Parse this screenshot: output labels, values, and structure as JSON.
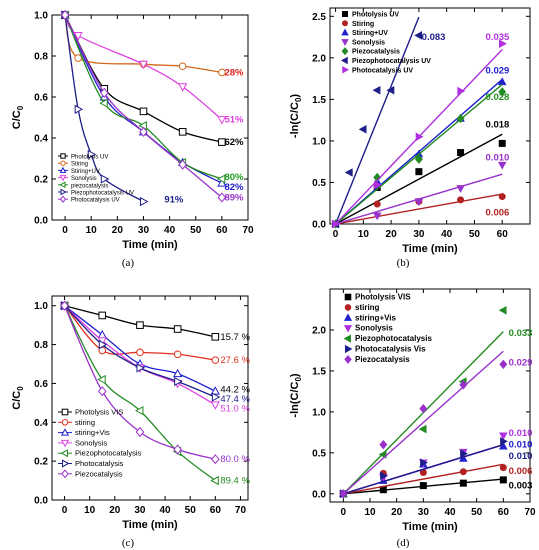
{
  "chart_data": [
    {
      "panel": "(a)",
      "type": "line",
      "xlabel": "Time (min)",
      "ylabel": "C/C",
      "ylabel_sub": "0",
      "xlim": [
        -5,
        70
      ],
      "ylim": [
        0.0,
        1.0
      ],
      "xticks": [
        0,
        10,
        20,
        30,
        40,
        50,
        60,
        70
      ],
      "yticks": [
        0.0,
        0.2,
        0.4,
        0.6,
        0.8,
        1.0
      ],
      "series": [
        {
          "name": "Photolysis UV",
          "color": "#000000",
          "marker": "square",
          "x": [
            0,
            15,
            30,
            45,
            60
          ],
          "y": [
            1.0,
            0.64,
            0.53,
            0.43,
            0.38
          ]
        },
        {
          "name": "Stiring",
          "color": "#d2691e",
          "marker": "circle",
          "x": [
            0,
            5,
            30,
            45,
            60
          ],
          "y": [
            1.0,
            0.79,
            0.76,
            0.75,
            0.72
          ]
        },
        {
          "name": "Stiring+UV",
          "color": "#2020d0",
          "marker": "triangle-up",
          "x": [
            0,
            15,
            30,
            45,
            60
          ],
          "y": [
            1.0,
            0.6,
            0.43,
            0.28,
            0.18
          ]
        },
        {
          "name": "Sonolysis",
          "color": "#e040e0",
          "marker": "triangle-down",
          "x": [
            0,
            5,
            30,
            45,
            60
          ],
          "y": [
            1.0,
            0.9,
            0.76,
            0.65,
            0.49
          ]
        },
        {
          "name": "piezocatalysis",
          "color": "#228b22",
          "marker": "triangle-left",
          "x": [
            0,
            15,
            30,
            45,
            60
          ],
          "y": [
            1.0,
            0.57,
            0.46,
            0.28,
            0.2
          ]
        },
        {
          "name": "Piezophotocatalysis UV",
          "color": "#1e1e8a",
          "marker": "triangle-right",
          "x": [
            0,
            5,
            10,
            15,
            30
          ],
          "y": [
            1.0,
            0.54,
            0.32,
            0.2,
            0.09
          ]
        },
        {
          "name": "Photocatalysis UV",
          "color": "#9932cc",
          "marker": "diamond",
          "x": [
            0,
            15,
            30,
            45,
            60
          ],
          "y": [
            1.0,
            0.62,
            0.43,
            0.27,
            0.11
          ]
        }
      ],
      "annotations": [
        {
          "text": "28%",
          "color": "#e02020",
          "x": 61,
          "y": 0.72
        },
        {
          "text": "51%",
          "color": "#e040e0",
          "x": 61,
          "y": 0.49
        },
        {
          "text": "62%",
          "color": "#000000",
          "x": 61,
          "y": 0.38
        },
        {
          "text": "80%",
          "color": "#20a020",
          "x": 61,
          "y": 0.21
        },
        {
          "text": "82%",
          "color": "#2020d0",
          "x": 61,
          "y": 0.16
        },
        {
          "text": "89%",
          "color": "#9932cc",
          "x": 61,
          "y": 0.11
        },
        {
          "text": "91%",
          "color": "#1e1e8a",
          "x": 38,
          "y": 0.1
        }
      ]
    },
    {
      "panel": "(b)",
      "type": "scatter",
      "xlabel": "Time (min)",
      "ylabel": "-ln(C/C",
      "ylabel_sub": "0",
      "ylabel_tail": ")",
      "xlim": [
        -2,
        70
      ],
      "ylim": [
        0.0,
        2.6
      ],
      "xticks": [
        0,
        10,
        20,
        30,
        40,
        50,
        60
      ],
      "yticks": [
        0.0,
        0.5,
        1.0,
        1.5,
        2.0,
        2.5
      ],
      "series": [
        {
          "name": "Photolysis UV",
          "color": "#000000",
          "marker": "square",
          "slope": 0.018,
          "x": [
            0,
            15,
            30,
            45,
            60
          ],
          "y": [
            0.0,
            0.44,
            0.63,
            0.86,
            0.97
          ]
        },
        {
          "name": "Stiring",
          "color": "#b22222",
          "marker": "circle",
          "slope": 0.006,
          "x": [
            0,
            15,
            30,
            45,
            60
          ],
          "y": [
            0.0,
            0.24,
            0.27,
            0.29,
            0.33
          ]
        },
        {
          "name": "Stiring+UV",
          "color": "#2020d0",
          "marker": "triangle-up",
          "slope": 0.029,
          "x": [
            0,
            15,
            30,
            45,
            60
          ],
          "y": [
            0.0,
            0.51,
            0.84,
            1.27,
            1.71
          ]
        },
        {
          "name": "Sonolysis",
          "color": "#9932cc",
          "marker": "triangle-down",
          "slope": 0.01,
          "x": [
            0,
            15,
            30,
            45,
            60
          ],
          "y": [
            0.0,
            0.1,
            0.27,
            0.43,
            0.71
          ]
        },
        {
          "name": "Piezocatalysis",
          "color": "#228b22",
          "marker": "diamond",
          "slope": 0.028,
          "x": [
            0,
            15,
            30,
            45,
            60
          ],
          "y": [
            0.0,
            0.56,
            0.78,
            1.27,
            1.59
          ]
        },
        {
          "name": "Piezophotocatalysis UV",
          "color": "#1e1e8a",
          "marker": "triangle-left",
          "slope": 0.083,
          "x": [
            0,
            5,
            10,
            15,
            20,
            30
          ],
          "y": [
            0.0,
            0.62,
            1.14,
            1.61,
            1.61,
            2.27
          ]
        },
        {
          "name": "Photocatalysis UV",
          "color": "#b030e0",
          "marker": "triangle-right",
          "slope": 0.035,
          "x": [
            0,
            15,
            30,
            45,
            60
          ],
          "y": [
            0.0,
            0.47,
            1.05,
            1.6,
            2.17
          ]
        }
      ],
      "annotations": [
        {
          "text": "0.083",
          "color": "#1e1e8a",
          "x": 31,
          "y": 2.25
        },
        {
          "text": "0.035",
          "color": "#b030e0",
          "x": 54,
          "y": 2.25
        },
        {
          "text": "0.029",
          "color": "#2020d0",
          "x": 54,
          "y": 1.85
        },
        {
          "text": "0.028",
          "color": "#228b22",
          "x": 54,
          "y": 1.53
        },
        {
          "text": "0.018",
          "color": "#000000",
          "x": 54,
          "y": 1.2
        },
        {
          "text": "0.010",
          "color": "#9932cc",
          "x": 54,
          "y": 0.8
        },
        {
          "text": "0.006",
          "color": "#b22222",
          "x": 54,
          "y": 0.14
        }
      ]
    },
    {
      "panel": "(c)",
      "type": "line",
      "xlabel": "Time (min)",
      "ylabel": "C/C",
      "ylabel_sub": "0",
      "xlim": [
        -5,
        73
      ],
      "ylim": [
        0.0,
        1.05
      ],
      "xticks": [
        0,
        10,
        20,
        30,
        40,
        50,
        60,
        70
      ],
      "yticks": [
        0.0,
        0.2,
        0.4,
        0.6,
        0.8,
        1.0
      ],
      "series": [
        {
          "name": "Photolysis VIS",
          "color": "#000000",
          "marker": "square",
          "x": [
            0,
            15,
            30,
            45,
            60
          ],
          "y": [
            1.0,
            0.95,
            0.9,
            0.88,
            0.84
          ]
        },
        {
          "name": "stiring",
          "color": "#e03020",
          "marker": "circle",
          "x": [
            0,
            15,
            30,
            45,
            60
          ],
          "y": [
            1.0,
            0.77,
            0.76,
            0.75,
            0.72
          ]
        },
        {
          "name": "stiring+Vis",
          "color": "#2020d0",
          "marker": "triangle-up",
          "x": [
            0,
            15,
            30,
            45,
            60
          ],
          "y": [
            1.0,
            0.85,
            0.7,
            0.65,
            0.56
          ]
        },
        {
          "name": "Sonolysis",
          "color": "#e040e0",
          "marker": "triangle-down",
          "x": [
            0,
            15,
            30,
            45,
            60
          ],
          "y": [
            1.0,
            0.82,
            0.68,
            0.6,
            0.49
          ]
        },
        {
          "name": "Piezophotocatalysis",
          "color": "#228b22",
          "marker": "triangle-left",
          "x": [
            0,
            15,
            30,
            45,
            60
          ],
          "y": [
            1.0,
            0.62,
            0.46,
            0.25,
            0.1
          ]
        },
        {
          "name": "Photocatalysis",
          "color": "#1e1e8a",
          "marker": "triangle-right",
          "x": [
            0,
            15,
            30,
            45,
            60
          ],
          "y": [
            1.0,
            0.8,
            0.68,
            0.61,
            0.53
          ]
        },
        {
          "name": "Piezocatalysis",
          "color": "#9932cc",
          "marker": "diamond",
          "x": [
            0,
            15,
            30,
            45,
            60
          ],
          "y": [
            1.0,
            0.56,
            0.35,
            0.26,
            0.21
          ]
        }
      ],
      "annotations": [
        {
          "text": "15.7 %",
          "color": "#000000",
          "x": 62,
          "y": 0.84
        },
        {
          "text": "27.6 %",
          "color": "#e03020",
          "x": 62,
          "y": 0.72
        },
        {
          "text": "44.2 %",
          "color": "#000000",
          "x": 62,
          "y": 0.57
        },
        {
          "text": "47.4 %",
          "color": "#1e1e8a",
          "x": 62,
          "y": 0.52
        },
        {
          "text": "51.0 %",
          "color": "#e040e0",
          "x": 62,
          "y": 0.47
        },
        {
          "text": "80.0 %",
          "color": "#9932cc",
          "x": 62,
          "y": 0.21
        },
        {
          "text": "89.4 %",
          "color": "#228b22",
          "x": 62,
          "y": 0.1
        }
      ]
    },
    {
      "panel": "(d)",
      "type": "scatter",
      "xlabel": "Time (min)",
      "ylabel": "-ln(C/C",
      "ylabel_sub": "0",
      "ylabel_tail": ")",
      "xlim": [
        -5,
        70
      ],
      "ylim": [
        -0.1,
        2.5
      ],
      "xticks": [
        0,
        10,
        20,
        30,
        40,
        50,
        60,
        70
      ],
      "yticks": [
        0.0,
        0.5,
        1.0,
        1.5,
        2.0
      ],
      "series": [
        {
          "name": "Photolysis VIS",
          "color": "#000000",
          "marker": "square",
          "slope": 0.003,
          "x": [
            0,
            15,
            30,
            45,
            60
          ],
          "y": [
            0.0,
            0.05,
            0.1,
            0.13,
            0.17
          ]
        },
        {
          "name": "stiring",
          "color": "#b22222",
          "marker": "circle",
          "slope": 0.006,
          "x": [
            0,
            15,
            30,
            45,
            60
          ],
          "y": [
            0.0,
            0.25,
            0.26,
            0.27,
            0.32
          ]
        },
        {
          "name": "stiring+Vis",
          "color": "#2020d0",
          "marker": "triangle-up",
          "slope": 0.01,
          "x": [
            0,
            15,
            30,
            45,
            60
          ],
          "y": [
            0.0,
            0.16,
            0.36,
            0.43,
            0.58
          ]
        },
        {
          "name": "Sonolysis",
          "color": "#b030e0",
          "marker": "triangle-down",
          "slope": 0.01,
          "x": [
            0,
            15,
            30,
            45,
            60
          ],
          "y": [
            0.0,
            0.2,
            0.38,
            0.51,
            0.71
          ]
        },
        {
          "name": "Piezophotocatalysis",
          "color": "#228b22",
          "marker": "triangle-left",
          "slope": 0.033,
          "x": [
            0,
            15,
            30,
            45,
            60
          ],
          "y": [
            0.0,
            0.48,
            0.79,
            1.37,
            2.24
          ]
        },
        {
          "name": "Photocatalysis Vis",
          "color": "#1e1e8a",
          "marker": "triangle-right",
          "slope": 0.01,
          "x": [
            0,
            15,
            30,
            45,
            60
          ],
          "y": [
            0.0,
            0.22,
            0.38,
            0.49,
            0.64
          ]
        },
        {
          "name": "Piezocatalysis",
          "color": "#9932cc",
          "marker": "diamond",
          "slope": 0.029,
          "x": [
            0,
            15,
            30,
            45,
            60
          ],
          "y": [
            0.0,
            0.6,
            1.04,
            1.33,
            1.58
          ]
        }
      ],
      "annotations": [
        {
          "text": "0.033",
          "color": "#228b22",
          "x": 62,
          "y": 1.96
        },
        {
          "text": "0.029",
          "color": "#9932cc",
          "x": 62,
          "y": 1.6
        },
        {
          "text": "0.010",
          "color": "#b030e0",
          "x": 62,
          "y": 0.74
        },
        {
          "text": "0.010",
          "color": "#2020d0",
          "x": 62,
          "y": 0.6
        },
        {
          "text": "0.010",
          "color": "#1e1e8a",
          "x": 62,
          "y": 0.46
        },
        {
          "text": "0.006",
          "color": "#b22222",
          "x": 62,
          "y": 0.28
        },
        {
          "text": "0.003",
          "color": "#000000",
          "x": 62,
          "y": 0.1
        }
      ]
    }
  ]
}
